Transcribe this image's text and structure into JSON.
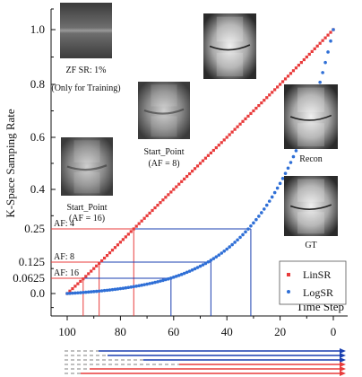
{
  "chart_data": {
    "type": "scatter",
    "ylabel": "K-Space Samping Rate",
    "xlabel": "Time Step",
    "xlim": [
      100,
      0
    ],
    "ylim": [
      -0.08,
      1.1
    ],
    "xticks": [
      100,
      80,
      60,
      40,
      20,
      0
    ],
    "yticks": [
      {
        "value": 0.0,
        "label": "0.0"
      },
      {
        "value": 0.0625,
        "label": "0.0625"
      },
      {
        "value": 0.125,
        "label": "0.125"
      },
      {
        "value": 0.25,
        "label": "0.25"
      },
      {
        "value": 0.4,
        "label": "0.4"
      },
      {
        "value": 0.6,
        "label": "0.6"
      },
      {
        "value": 0.8,
        "label": "0.8"
      },
      {
        "value": 1.0,
        "label": "1.0"
      }
    ],
    "series": [
      {
        "name": "LinSR",
        "color": "#e83b3b",
        "marker": "square",
        "x_start": 100,
        "x_end": 0,
        "y_start": 0.0,
        "y_end": 1.0,
        "curve": "linear"
      },
      {
        "name": "LogSR",
        "color": "#2f6fd6",
        "marker": "circle",
        "x_start": 100,
        "x_end": 0,
        "y_start": 0.0,
        "y_end": 1.0,
        "curve": "exponential"
      }
    ],
    "af_markers": [
      {
        "label": "AF: 4",
        "y": 0.25,
        "lin_x": 75,
        "log_x": 31
      },
      {
        "label": "AF: 8",
        "y": 0.125,
        "lin_x": 88,
        "log_x": 46
      },
      {
        "label": "AF: 16",
        "y": 0.0625,
        "lin_x": 94,
        "log_x": 61
      }
    ],
    "legend": {
      "position": "bottom-right",
      "entries": [
        "LinSR",
        "LogSR"
      ]
    }
  },
  "captions": {
    "zf": [
      "ZF SR: 1%",
      "(Only for Training)"
    ],
    "af8": [
      "Start_Point",
      "(AF = 8)"
    ],
    "af16": [
      "Start_Point",
      "(AF = 16)"
    ],
    "recon": [
      "Recon"
    ],
    "gt": [
      "GT"
    ]
  }
}
